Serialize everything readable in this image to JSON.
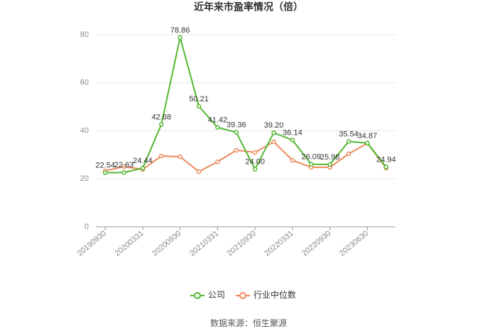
{
  "chart_data": {
    "type": "line",
    "title": "近年来市盈率情况（倍）",
    "source": "数据来源：恒生聚源",
    "categories": [
      "20190930",
      null,
      "20200331",
      null,
      "20200930",
      null,
      "20210331",
      null,
      "20210930",
      null,
      "20220331",
      null,
      "20220930",
      null,
      "20230630",
      null
    ],
    "series": [
      {
        "name": "公司",
        "color": "#52b830",
        "values": [
          22.54,
          22.63,
          24.44,
          42.68,
          78.86,
          50.21,
          41.42,
          39.36,
          24.0,
          39.2,
          36.14,
          26.09,
          25.98,
          35.54,
          34.87,
          24.94
        ],
        "value_labels": [
          "22.54",
          "22.63",
          "24.44",
          "42.68",
          "78.86",
          "50.21",
          "41.42",
          "39.36",
          "24.00",
          "39.20",
          "36.14",
          "26.09",
          "25.98",
          "35.54",
          "34.87",
          "24.94"
        ]
      },
      {
        "name": "行业中位数",
        "color": "#ee8a5c",
        "values": [
          23.3,
          25.1,
          23.9,
          29.5,
          29.2,
          23.0,
          27.1,
          31.9,
          31.0,
          35.4,
          27.7,
          24.8,
          24.8,
          30.4,
          34.8,
          24.5
        ]
      }
    ],
    "ylim": [
      0,
      80
    ],
    "yticks": [
      0,
      20,
      40,
      60,
      80
    ],
    "grid": true,
    "legend": "bottom"
  }
}
